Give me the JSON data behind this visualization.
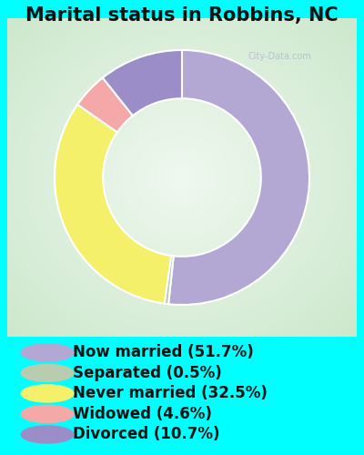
{
  "title": "Marital status in Robbins, NC",
  "slices": [
    51.7,
    0.5,
    32.5,
    4.6,
    10.7
  ],
  "labels": [
    "Now married (51.7%)",
    "Separated (0.5%)",
    "Never married (32.5%)",
    "Widowed (4.6%)",
    "Divorced (10.7%)"
  ],
  "colors": [
    "#b3a8d4",
    "#b8ccb0",
    "#f5f06a",
    "#f5a8a8",
    "#9b8dc8"
  ],
  "background_cyan": "#00FFFF",
  "title_fontsize": 15,
  "legend_fontsize": 12,
  "donut_width": 0.38,
  "chart_area_color": "#cce8cc",
  "watermark": "City-Data.com"
}
